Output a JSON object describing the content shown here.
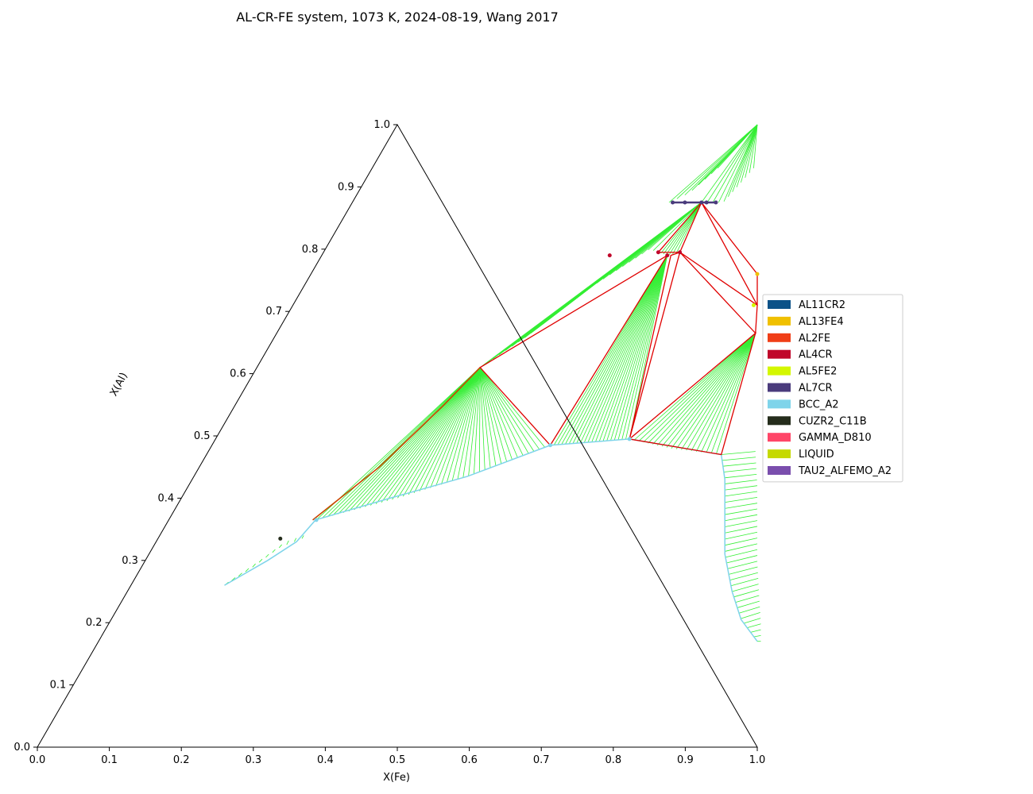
{
  "chart_data": {
    "type": "ternary-phase-diagram",
    "title": "AL-CR-FE system, 1073 K, 2024-08-19, Wang 2017",
    "xlabel": "X(Fe)",
    "ylabel": "X(Al)",
    "xlim": [
      0,
      1
    ],
    "ylim": [
      0,
      1
    ],
    "x_ticks": [
      "0.0",
      "0.1",
      "0.2",
      "0.3",
      "0.4",
      "0.5",
      "0.6",
      "0.7",
      "0.8",
      "0.9",
      "1.0"
    ],
    "y_ticks": [
      "0.0",
      "0.1",
      "0.2",
      "0.3",
      "0.4",
      "0.5",
      "0.6",
      "0.7",
      "0.8",
      "0.9",
      "1.0"
    ],
    "legend_position": "center-right",
    "legend": [
      {
        "name": "AL11CR2",
        "color": "#0b5288"
      },
      {
        "name": "AL13FE4",
        "color": "#f0c000"
      },
      {
        "name": "AL2FE",
        "color": "#f03e17"
      },
      {
        "name": "AL4CR",
        "color": "#c0062a"
      },
      {
        "name": "AL5FE2",
        "color": "#d4f700"
      },
      {
        "name": "AL7CR",
        "color": "#4a3b7c"
      },
      {
        "name": "BCC_A2",
        "color": "#7fd4ea"
      },
      {
        "name": "CUZR2_C11B",
        "color": "#252d1c"
      },
      {
        "name": "GAMMA_D810",
        "color": "#ff4668"
      },
      {
        "name": "LIQUID",
        "color": "#c5d900"
      },
      {
        "name": "TAU2_ALFEMO_A2",
        "color": "#7a4ead"
      }
    ],
    "tie_line_color": "#33ee33",
    "tie_triangle_color": "#e00000",
    "bcc_boundary": [
      [
        0.13,
        0.26
      ],
      [
        0.17,
        0.3
      ],
      [
        0.195,
        0.33
      ],
      [
        0.204,
        0.365
      ],
      [
        0.29,
        0.4
      ],
      [
        0.38,
        0.435
      ],
      [
        0.47,
        0.485
      ],
      [
        0.575,
        0.495
      ],
      [
        0.715,
        0.47
      ],
      [
        0.74,
        0.43
      ],
      [
        0.77,
        0.37
      ],
      [
        0.8,
        0.31
      ],
      [
        0.84,
        0.25
      ],
      [
        0.875,
        0.205
      ],
      [
        0.915,
        0.17
      ]
    ],
    "gamma_boundary": [
      [
        0.2,
        0.365
      ],
      [
        0.25,
        0.45
      ],
      [
        0.29,
        0.55
      ],
      [
        0.31,
        0.61
      ]
    ],
    "invariant_triangles": [
      {
        "vertices": [
          [
            0.47,
            0.485
          ],
          [
            0.31,
            0.61
          ],
          [
            0.48,
            0.79
          ]
        ]
      },
      {
        "vertices": [
          [
            0.575,
            0.495
          ],
          [
            0.485,
            0.79
          ],
          [
            0.495,
            0.795
          ]
        ]
      },
      {
        "vertices": [
          [
            0.575,
            0.495
          ],
          [
            0.665,
            0.665
          ],
          [
            0.715,
            0.47
          ]
        ]
      },
      {
        "vertices": [
          [
            0.465,
            0.795
          ],
          [
            0.485,
            0.875
          ],
          [
            0.495,
            0.795
          ]
        ]
      },
      {
        "vertices": [
          [
            0.495,
            0.795
          ],
          [
            0.665,
            0.665
          ],
          [
            0.645,
            0.71
          ]
        ]
      },
      {
        "vertices": [
          [
            0.485,
            0.875
          ],
          [
            0.645,
            0.71
          ],
          [
            0.62,
            0.76
          ]
        ]
      }
    ],
    "tie_fans": [
      {
        "from": [
          0.31,
          0.61
        ],
        "along": [
          [
            0.205,
            0.365
          ],
          [
            0.3,
            0.4
          ],
          [
            0.38,
            0.435
          ],
          [
            0.47,
            0.485
          ]
        ],
        "count": 44
      },
      {
        "from": [
          0.48,
          0.79
        ],
        "along": [
          [
            0.47,
            0.485
          ],
          [
            0.52,
            0.49
          ],
          [
            0.575,
            0.495
          ]
        ],
        "count": 22
      },
      {
        "from": [
          0.665,
          0.665
        ],
        "along": [
          [
            0.575,
            0.495
          ],
          [
            0.64,
            0.48
          ],
          [
            0.715,
            0.47
          ]
        ],
        "count": 20
      },
      {
        "from": [
          0.485,
          0.875
        ],
        "along": [
          [
            0.31,
            0.61
          ],
          [
            0.35,
            0.66
          ],
          [
            0.4,
            0.74
          ],
          [
            0.45,
            0.8
          ],
          [
            0.465,
            0.795
          ]
        ],
        "count": 30
      },
      {
        "from": [
          0.5,
          1.0
        ],
        "along": [
          [
            0.485,
            0.875
          ],
          [
            0.5,
            0.875
          ],
          [
            0.515,
            0.875
          ],
          [
            0.53,
            0.93
          ]
        ],
        "count": 12
      },
      {
        "from": [
          0.5,
          1.0
        ],
        "along": [
          [
            0.44,
            0.875
          ],
          [
            0.46,
            0.89
          ],
          [
            0.48,
            0.93
          ]
        ],
        "count": 8
      },
      {
        "from": [
          0.485,
          0.875
        ],
        "along": [
          [
            0.465,
            0.795
          ],
          [
            0.48,
            0.79
          ],
          [
            0.495,
            0.795
          ]
        ],
        "count": 8
      }
    ],
    "parallel_tie_band": {
      "inner": [
        [
          0.715,
          0.47
        ],
        [
          0.74,
          0.43
        ],
        [
          0.77,
          0.37
        ],
        [
          0.8,
          0.31
        ],
        [
          0.84,
          0.25
        ],
        [
          0.875,
          0.205
        ],
        [
          0.915,
          0.17
        ]
      ],
      "outer": [
        [
          0.76,
          0.475
        ],
        [
          0.79,
          0.42
        ],
        [
          0.82,
          0.36
        ],
        [
          0.85,
          0.3
        ],
        [
          0.88,
          0.245
        ],
        [
          0.905,
          0.2
        ],
        [
          0.92,
          0.17
        ]
      ],
      "count": 34
    },
    "al_rich_band": {
      "inner": [
        [
          0.13,
          0.26
        ],
        [
          0.155,
          0.29
        ],
        [
          0.175,
          0.32
        ],
        [
          0.2,
          0.335
        ]
      ],
      "outer": [
        [
          0.133,
          0.265
        ],
        [
          0.16,
          0.3
        ],
        [
          0.18,
          0.33
        ],
        [
          0.2,
          0.34
        ]
      ],
      "count": 12
    },
    "phase_points": [
      {
        "x": 0.445,
        "y": 0.875,
        "phase": "AL7CR"
      },
      {
        "x": 0.462,
        "y": 0.875,
        "phase": "AL7CR"
      },
      {
        "x": 0.485,
        "y": 0.875,
        "phase": "AL7CR"
      },
      {
        "x": 0.492,
        "y": 0.875,
        "phase": "AL7CR"
      },
      {
        "x": 0.505,
        "y": 0.875,
        "phase": "AL7CR"
      },
      {
        "x": 0.465,
        "y": 0.795,
        "phase": "AL4CR"
      },
      {
        "x": 0.48,
        "y": 0.79,
        "phase": "AL4CR"
      },
      {
        "x": 0.495,
        "y": 0.795,
        "phase": "AL4CR"
      },
      {
        "x": 0.4,
        "y": 0.79,
        "phase": "AL4CR"
      },
      {
        "x": 0.64,
        "y": 0.71,
        "phase": "AL5FE2"
      },
      {
        "x": 0.62,
        "y": 0.76,
        "phase": "AL13FE4"
      },
      {
        "x": 0.17,
        "y": 0.335,
        "phase": "CUZR2_C11B"
      },
      {
        "x": 0.47,
        "y": 0.485,
        "phase": "BCC_A2"
      },
      {
        "x": 0.575,
        "y": 0.495,
        "phase": "BCC_A2"
      },
      {
        "x": 0.205,
        "y": 0.365,
        "phase": "BCC_A2"
      }
    ]
  }
}
